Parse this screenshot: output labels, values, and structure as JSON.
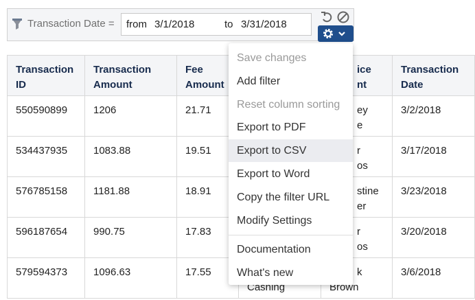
{
  "filter": {
    "label": "Transaction Date =",
    "from_label": "from",
    "from": "3/1/2018",
    "to_label": "to",
    "to": "3/31/2018"
  },
  "table": {
    "headers": [
      "Transaction\nID",
      "Transaction\nAmount",
      "Fee\nAmount",
      null,
      "ice\nnt",
      "Transaction\nDate"
    ],
    "rows": [
      [
        "550590899",
        "1206",
        "21.71",
        null,
        "ey\ne",
        "3/2/2018"
      ],
      [
        "534437935",
        "1083.88",
        "19.51",
        null,
        "r\nos",
        "3/17/2018"
      ],
      [
        "576785158",
        "1181.88",
        "18.91",
        null,
        "stine\ner",
        "3/23/2018"
      ],
      [
        "596187654",
        "990.75",
        "17.83",
        null,
        "r\nos",
        "3/20/2018"
      ],
      [
        "579594373",
        "1096.63",
        "17.55",
        "Cashing",
        "k\nBrown",
        "3/6/2018"
      ]
    ]
  },
  "menu": {
    "items": [
      {
        "label": "Save changes",
        "disabled": true
      },
      {
        "label": "Add filter",
        "disabled": false
      },
      {
        "label": "Reset column sorting",
        "disabled": true
      },
      {
        "label": "Export to PDF",
        "disabled": false
      },
      {
        "label": "Export to CSV",
        "disabled": false,
        "hovered": true
      },
      {
        "label": "Export to Word",
        "disabled": false
      },
      {
        "label": "Copy the filter URL",
        "disabled": false
      },
      {
        "label": "Modify Settings",
        "disabled": false
      }
    ],
    "secondary": [
      {
        "label": "Documentation",
        "disabled": false
      },
      {
        "label": "What's new",
        "disabled": false
      }
    ]
  }
}
